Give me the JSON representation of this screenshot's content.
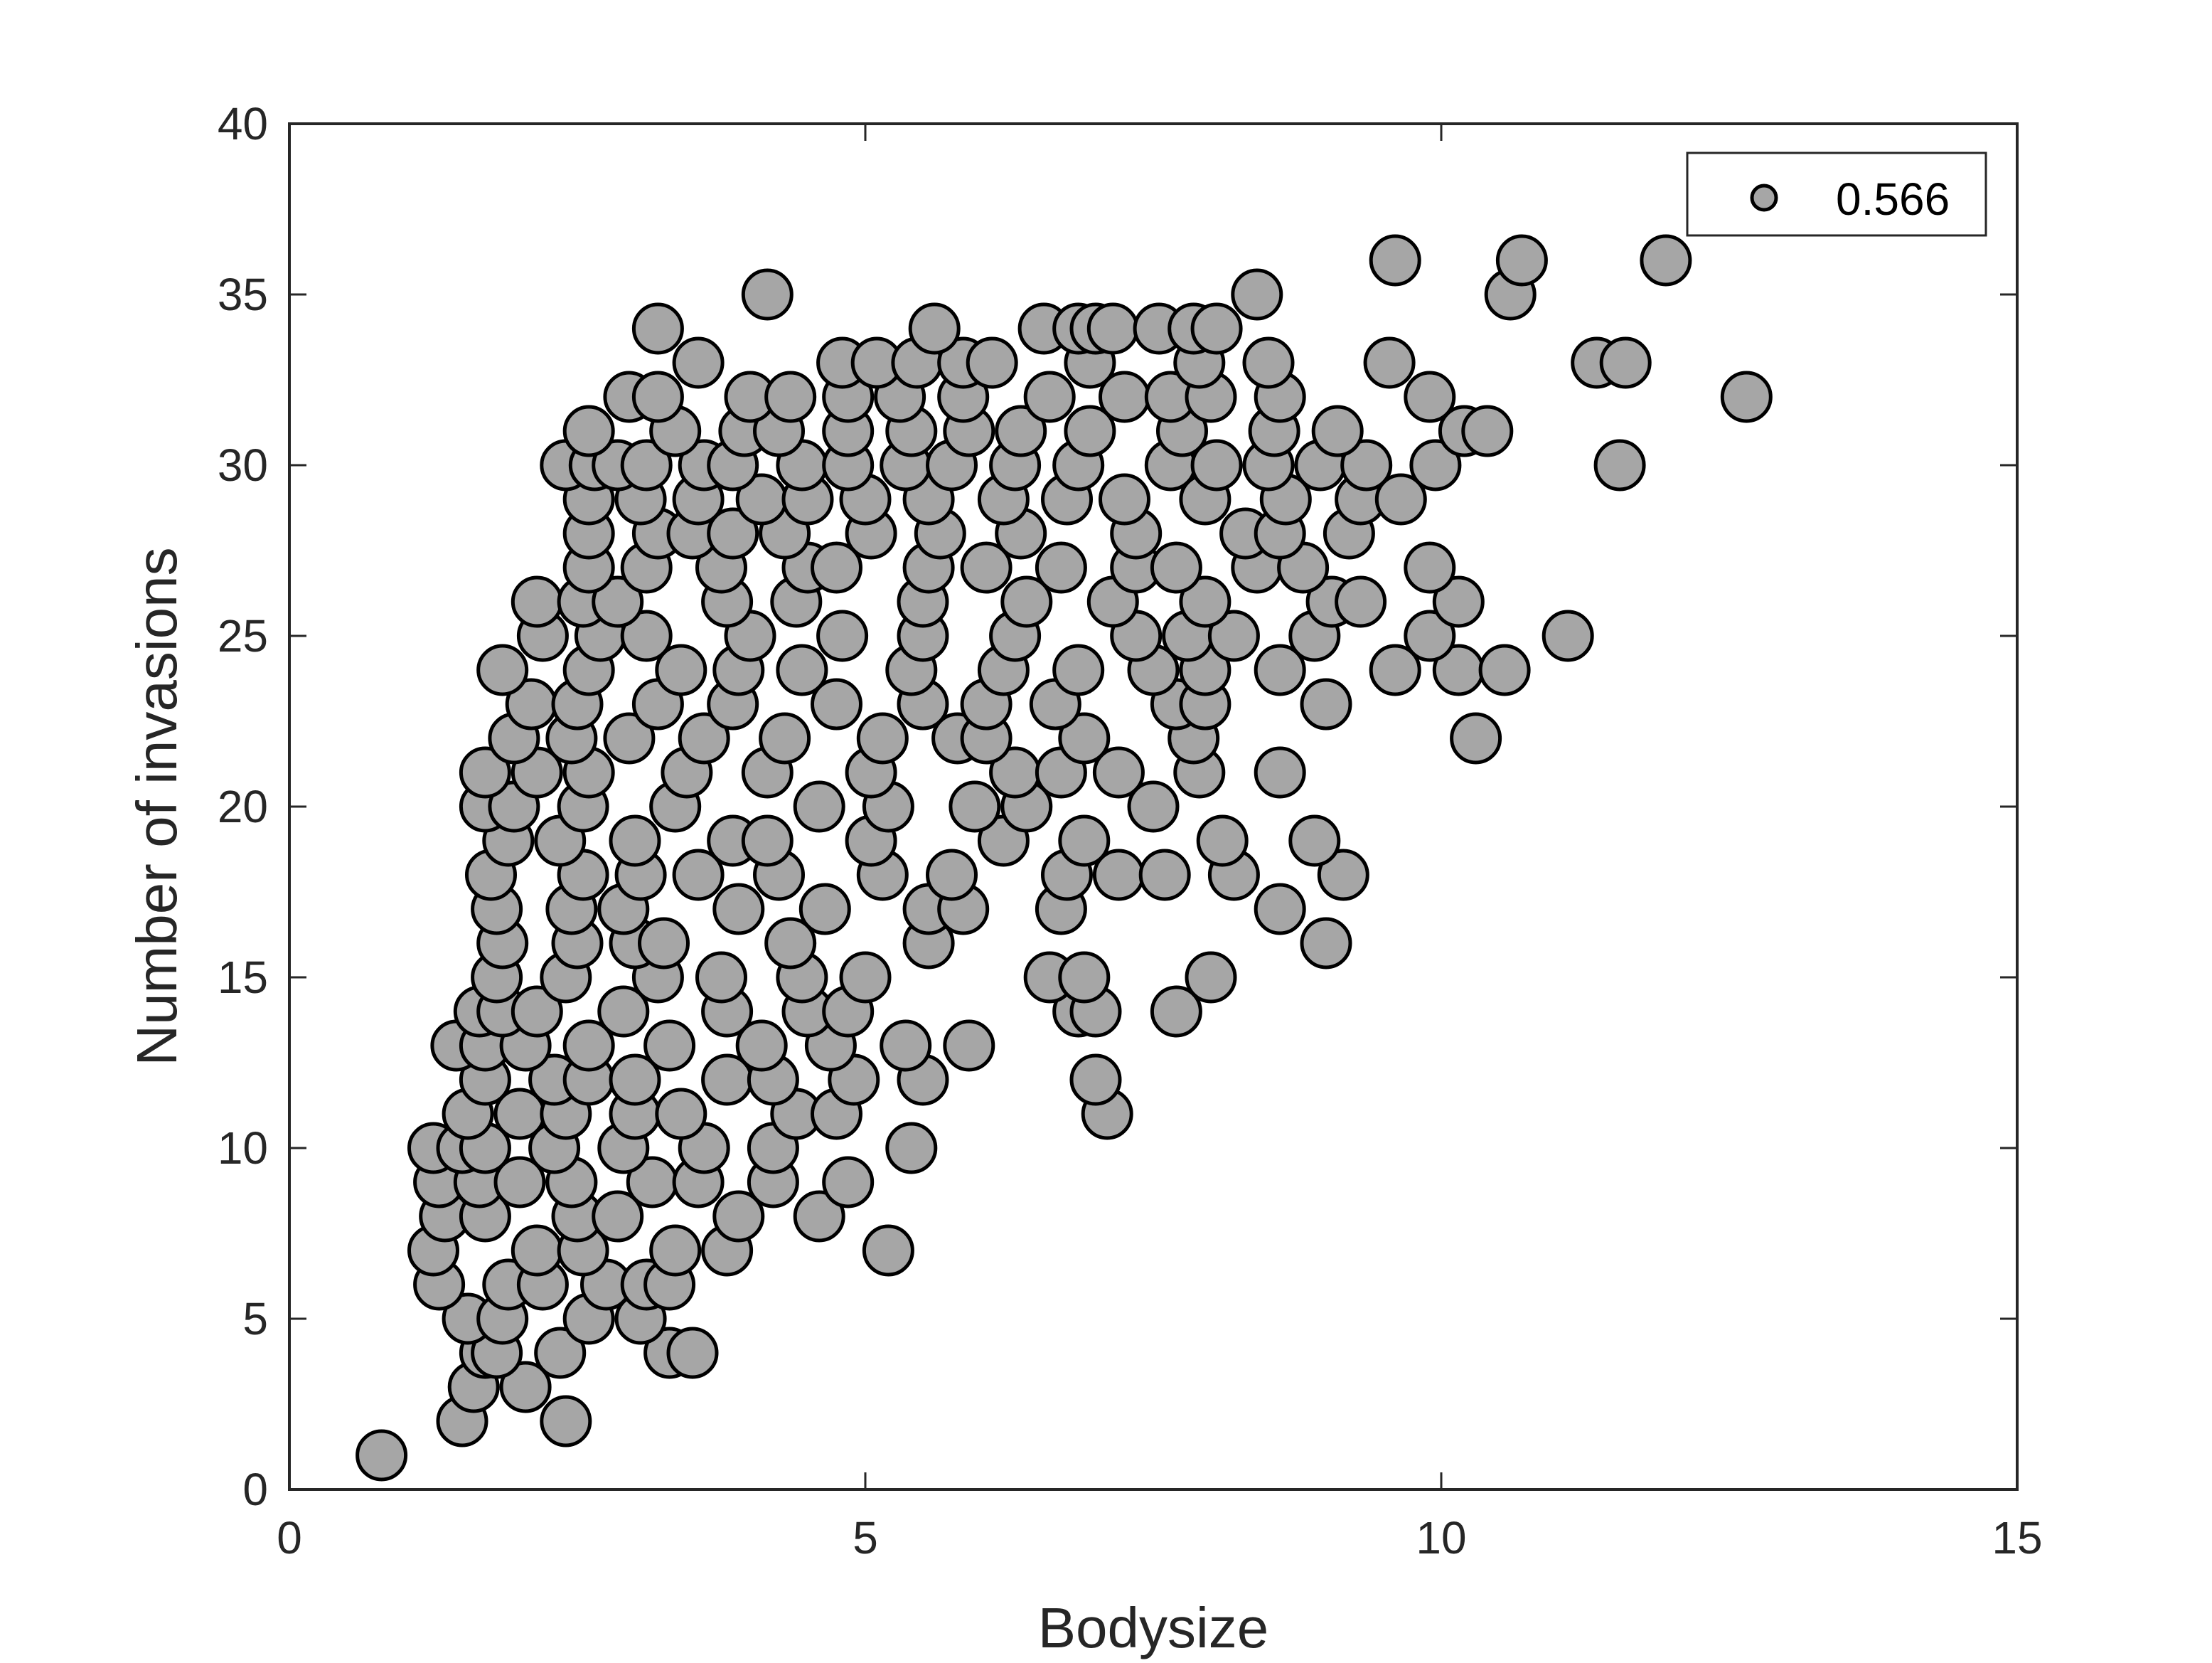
{
  "chart_data": {
    "type": "scatter",
    "title": "",
    "xlabel": "Bodysize",
    "ylabel": "Number of invasions",
    "xlim": [
      0,
      15
    ],
    "ylim": [
      0,
      40
    ],
    "xticks": [
      0,
      5,
      10,
      15
    ],
    "yticks": [
      0,
      5,
      10,
      15,
      20,
      25,
      30,
      35,
      40
    ],
    "grid": false,
    "legend": {
      "position": "top-right",
      "entries": [
        "0.566"
      ]
    },
    "marker": {
      "shape": "circle",
      "fill": "#a6a6a6",
      "stroke": "#000000"
    },
    "series": [
      {
        "name": "0.566",
        "points": [
          [
            0.8,
            1
          ],
          [
            1.5,
            2
          ],
          [
            2.4,
            2
          ],
          [
            1.6,
            3
          ],
          [
            2.05,
            3
          ],
          [
            1.7,
            4
          ],
          [
            1.8,
            4
          ],
          [
            2.35,
            4
          ],
          [
            3.3,
            4
          ],
          [
            3.5,
            4
          ],
          [
            1.55,
            5
          ],
          [
            1.85,
            5
          ],
          [
            2.6,
            5
          ],
          [
            3.05,
            5
          ],
          [
            1.3,
            6
          ],
          [
            1.9,
            6
          ],
          [
            2.2,
            6
          ],
          [
            2.75,
            6
          ],
          [
            3.1,
            6
          ],
          [
            3.3,
            6
          ],
          [
            1.25,
            7
          ],
          [
            2.15,
            7
          ],
          [
            2.55,
            7
          ],
          [
            3.35,
            7
          ],
          [
            3.8,
            7
          ],
          [
            5.2,
            7
          ],
          [
            1.35,
            8
          ],
          [
            1.7,
            8
          ],
          [
            2.5,
            8
          ],
          [
            2.85,
            8
          ],
          [
            3.9,
            8
          ],
          [
            4.6,
            8
          ],
          [
            1.3,
            9
          ],
          [
            1.65,
            9
          ],
          [
            2.0,
            9
          ],
          [
            2.45,
            9
          ],
          [
            3.15,
            9
          ],
          [
            3.55,
            9
          ],
          [
            4.2,
            9
          ],
          [
            4.85,
            9
          ],
          [
            1.25,
            10
          ],
          [
            1.5,
            10
          ],
          [
            1.7,
            10
          ],
          [
            2.3,
            10
          ],
          [
            2.9,
            10
          ],
          [
            3.6,
            10
          ],
          [
            4.2,
            10
          ],
          [
            5.4,
            10
          ],
          [
            1.55,
            11
          ],
          [
            2.0,
            11
          ],
          [
            2.4,
            11
          ],
          [
            3.0,
            11
          ],
          [
            3.4,
            11
          ],
          [
            4.4,
            11
          ],
          [
            4.75,
            11
          ],
          [
            7.1,
            11
          ],
          [
            1.7,
            12
          ],
          [
            2.3,
            12
          ],
          [
            2.6,
            12
          ],
          [
            3.0,
            12
          ],
          [
            3.8,
            12
          ],
          [
            4.2,
            12
          ],
          [
            4.9,
            12
          ],
          [
            5.5,
            12
          ],
          [
            7.0,
            12
          ],
          [
            1.45,
            13
          ],
          [
            1.7,
            13
          ],
          [
            2.05,
            13
          ],
          [
            2.6,
            13
          ],
          [
            3.3,
            13
          ],
          [
            4.1,
            13
          ],
          [
            4.7,
            13
          ],
          [
            5.35,
            13
          ],
          [
            5.9,
            13
          ],
          [
            1.65,
            14
          ],
          [
            1.85,
            14
          ],
          [
            2.15,
            14
          ],
          [
            2.9,
            14
          ],
          [
            3.8,
            14
          ],
          [
            4.5,
            14
          ],
          [
            4.85,
            14
          ],
          [
            6.85,
            14
          ],
          [
            7.0,
            14
          ],
          [
            7.7,
            14
          ],
          [
            1.8,
            15
          ],
          [
            2.4,
            15
          ],
          [
            3.2,
            15
          ],
          [
            3.75,
            15
          ],
          [
            4.45,
            15
          ],
          [
            5.0,
            15
          ],
          [
            6.6,
            15
          ],
          [
            6.9,
            15
          ],
          [
            8.0,
            15
          ],
          [
            1.85,
            16
          ],
          [
            2.5,
            16
          ],
          [
            3.0,
            16
          ],
          [
            3.25,
            16
          ],
          [
            4.35,
            16
          ],
          [
            5.55,
            16
          ],
          [
            9.0,
            16
          ],
          [
            1.8,
            17
          ],
          [
            2.45,
            17
          ],
          [
            2.9,
            17
          ],
          [
            3.9,
            17
          ],
          [
            4.65,
            17
          ],
          [
            5.55,
            17
          ],
          [
            5.85,
            17
          ],
          [
            6.7,
            17
          ],
          [
            8.6,
            17
          ],
          [
            1.75,
            18
          ],
          [
            2.55,
            18
          ],
          [
            3.05,
            18
          ],
          [
            3.55,
            18
          ],
          [
            4.25,
            18
          ],
          [
            5.15,
            18
          ],
          [
            5.75,
            18
          ],
          [
            6.75,
            18
          ],
          [
            7.2,
            18
          ],
          [
            7.6,
            18
          ],
          [
            8.2,
            18
          ],
          [
            9.15,
            18
          ],
          [
            1.9,
            19
          ],
          [
            2.35,
            19
          ],
          [
            3.0,
            19
          ],
          [
            3.85,
            19
          ],
          [
            4.15,
            19
          ],
          [
            5.05,
            19
          ],
          [
            6.2,
            19
          ],
          [
            6.9,
            19
          ],
          [
            8.1,
            19
          ],
          [
            8.9,
            19
          ],
          [
            1.7,
            20
          ],
          [
            1.95,
            20
          ],
          [
            2.55,
            20
          ],
          [
            3.35,
            20
          ],
          [
            4.6,
            20
          ],
          [
            5.2,
            20
          ],
          [
            5.95,
            20
          ],
          [
            6.4,
            20
          ],
          [
            7.5,
            20
          ],
          [
            1.7,
            21
          ],
          [
            2.15,
            21
          ],
          [
            2.6,
            21
          ],
          [
            3.45,
            21
          ],
          [
            4.15,
            21
          ],
          [
            5.05,
            21
          ],
          [
            6.3,
            21
          ],
          [
            6.7,
            21
          ],
          [
            7.2,
            21
          ],
          [
            7.9,
            21
          ],
          [
            8.6,
            21
          ],
          [
            1.95,
            22
          ],
          [
            2.45,
            22
          ],
          [
            2.95,
            22
          ],
          [
            3.6,
            22
          ],
          [
            4.3,
            22
          ],
          [
            5.15,
            22
          ],
          [
            5.8,
            22
          ],
          [
            6.05,
            22
          ],
          [
            6.9,
            22
          ],
          [
            7.85,
            22
          ],
          [
            10.3,
            22
          ],
          [
            2.1,
            23
          ],
          [
            2.5,
            23
          ],
          [
            3.2,
            23
          ],
          [
            3.85,
            23
          ],
          [
            4.75,
            23
          ],
          [
            5.5,
            23
          ],
          [
            6.05,
            23
          ],
          [
            6.65,
            23
          ],
          [
            7.7,
            23
          ],
          [
            7.95,
            23
          ],
          [
            9.0,
            23
          ],
          [
            1.85,
            24
          ],
          [
            2.6,
            24
          ],
          [
            3.4,
            24
          ],
          [
            3.9,
            24
          ],
          [
            4.45,
            24
          ],
          [
            5.4,
            24
          ],
          [
            6.2,
            24
          ],
          [
            6.85,
            24
          ],
          [
            7.5,
            24
          ],
          [
            7.95,
            24
          ],
          [
            8.6,
            24
          ],
          [
            9.6,
            24
          ],
          [
            10.15,
            24
          ],
          [
            10.55,
            24
          ],
          [
            2.2,
            25
          ],
          [
            2.7,
            25
          ],
          [
            3.1,
            25
          ],
          [
            4.0,
            25
          ],
          [
            4.8,
            25
          ],
          [
            5.5,
            25
          ],
          [
            6.3,
            25
          ],
          [
            7.35,
            25
          ],
          [
            7.8,
            25
          ],
          [
            8.2,
            25
          ],
          [
            8.9,
            25
          ],
          [
            9.9,
            25
          ],
          [
            11.1,
            25
          ],
          [
            2.15,
            26
          ],
          [
            2.55,
            26
          ],
          [
            2.85,
            26
          ],
          [
            3.8,
            26
          ],
          [
            4.4,
            26
          ],
          [
            5.5,
            26
          ],
          [
            6.4,
            26
          ],
          [
            7.15,
            26
          ],
          [
            7.95,
            26
          ],
          [
            9.05,
            26
          ],
          [
            9.3,
            26
          ],
          [
            10.15,
            26
          ],
          [
            2.6,
            27
          ],
          [
            3.1,
            27
          ],
          [
            3.75,
            27
          ],
          [
            4.5,
            27
          ],
          [
            4.75,
            27
          ],
          [
            5.55,
            27
          ],
          [
            6.05,
            27
          ],
          [
            6.7,
            27
          ],
          [
            7.35,
            27
          ],
          [
            7.7,
            27
          ],
          [
            8.4,
            27
          ],
          [
            8.8,
            27
          ],
          [
            9.9,
            27
          ],
          [
            2.6,
            28
          ],
          [
            3.2,
            28
          ],
          [
            3.5,
            28
          ],
          [
            3.85,
            28
          ],
          [
            4.3,
            28
          ],
          [
            5.05,
            28
          ],
          [
            5.65,
            28
          ],
          [
            6.35,
            28
          ],
          [
            7.35,
            28
          ],
          [
            8.3,
            28
          ],
          [
            8.6,
            28
          ],
          [
            9.2,
            28
          ],
          [
            2.6,
            29
          ],
          [
            3.05,
            29
          ],
          [
            3.55,
            29
          ],
          [
            4.1,
            29
          ],
          [
            4.5,
            29
          ],
          [
            5.0,
            29
          ],
          [
            5.55,
            29
          ],
          [
            6.2,
            29
          ],
          [
            6.75,
            29
          ],
          [
            7.25,
            29
          ],
          [
            7.95,
            29
          ],
          [
            8.65,
            29
          ],
          [
            9.3,
            29
          ],
          [
            9.65,
            29
          ],
          [
            2.4,
            30
          ],
          [
            2.65,
            30
          ],
          [
            2.85,
            30
          ],
          [
            3.1,
            30
          ],
          [
            3.6,
            30
          ],
          [
            3.85,
            30
          ],
          [
            4.45,
            30
          ],
          [
            4.85,
            30
          ],
          [
            5.35,
            30
          ],
          [
            5.75,
            30
          ],
          [
            6.3,
            30
          ],
          [
            6.85,
            30
          ],
          [
            7.65,
            30
          ],
          [
            8.05,
            30
          ],
          [
            8.5,
            30
          ],
          [
            8.95,
            30
          ],
          [
            9.35,
            30
          ],
          [
            9.95,
            30
          ],
          [
            11.55,
            30
          ],
          [
            2.6,
            31
          ],
          [
            3.35,
            31
          ],
          [
            3.95,
            31
          ],
          [
            4.25,
            31
          ],
          [
            4.85,
            31
          ],
          [
            5.4,
            31
          ],
          [
            5.9,
            31
          ],
          [
            6.35,
            31
          ],
          [
            6.95,
            31
          ],
          [
            7.75,
            31
          ],
          [
            8.55,
            31
          ],
          [
            9.1,
            31
          ],
          [
            10.2,
            31
          ],
          [
            10.4,
            31
          ],
          [
            2.95,
            32
          ],
          [
            3.2,
            32
          ],
          [
            4.0,
            32
          ],
          [
            4.35,
            32
          ],
          [
            4.85,
            32
          ],
          [
            5.3,
            32
          ],
          [
            5.85,
            32
          ],
          [
            6.6,
            32
          ],
          [
            7.25,
            32
          ],
          [
            7.65,
            32
          ],
          [
            8.0,
            32
          ],
          [
            8.6,
            32
          ],
          [
            9.9,
            32
          ],
          [
            12.65,
            32
          ],
          [
            3.55,
            33
          ],
          [
            4.8,
            33
          ],
          [
            5.1,
            33
          ],
          [
            5.45,
            33
          ],
          [
            5.85,
            33
          ],
          [
            6.1,
            33
          ],
          [
            6.95,
            33
          ],
          [
            7.9,
            33
          ],
          [
            8.5,
            33
          ],
          [
            9.55,
            33
          ],
          [
            11.35,
            33
          ],
          [
            11.6,
            33
          ],
          [
            3.2,
            34
          ],
          [
            5.6,
            34
          ],
          [
            6.55,
            34
          ],
          [
            6.85,
            34
          ],
          [
            7.0,
            34
          ],
          [
            7.15,
            34
          ],
          [
            7.55,
            34
          ],
          [
            7.85,
            34
          ],
          [
            8.05,
            34
          ],
          [
            4.15,
            35
          ],
          [
            8.4,
            35
          ],
          [
            10.6,
            35
          ],
          [
            9.6,
            36
          ],
          [
            10.7,
            36
          ],
          [
            11.95,
            36
          ]
        ]
      }
    ]
  }
}
